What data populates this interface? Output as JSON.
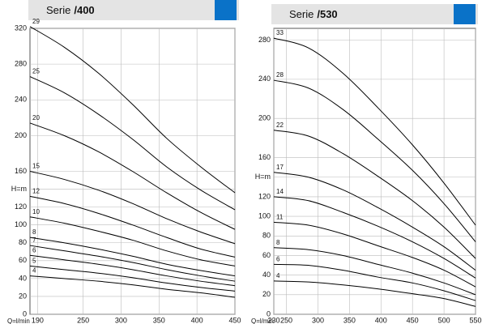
{
  "chart_data": [
    {
      "type": "line",
      "title": "Serie",
      "model": "/400",
      "xlabel": "Q=l/min",
      "grid": true,
      "x": [
        180,
        225,
        270,
        315,
        360,
        405,
        450
      ],
      "xlim": [
        180,
        450
      ],
      "xticks": [
        190,
        250,
        300,
        350,
        400,
        450
      ],
      "ylim": [
        0,
        320
      ],
      "yticks": [
        0,
        20,
        40,
        60,
        80,
        100,
        120,
        {
          "value": 140,
          "label": "H=m"
        },
        160,
        200,
        240,
        280,
        320
      ],
      "series": [
        {
          "name": "29",
          "color": "#000000",
          "values": [
            322,
            299,
            270,
            235,
            197,
            165,
            136
          ]
        },
        {
          "name": "25",
          "color": "#000000",
          "values": [
            266,
            248,
            224,
            196,
            165,
            139,
            117
          ]
        },
        {
          "name": "20",
          "color": "#000000",
          "values": [
            214,
            200,
            182,
            160,
            136,
            114,
            95
          ]
        },
        {
          "name": "15",
          "color": "#000000",
          "values": [
            160,
            151,
            139,
            124,
            107,
            92,
            79
          ]
        },
        {
          "name": "12",
          "color": "#000000",
          "values": [
            132,
            124,
            113,
            100,
            86,
            73,
            64
          ]
        },
        {
          "name": "10",
          "color": "#000000",
          "values": [
            109,
            102,
            93,
            83,
            71,
            61,
            54
          ]
        },
        {
          "name": "8",
          "color": "#000000",
          "values": [
            86,
            80,
            73,
            65,
            56,
            49,
            43
          ]
        },
        {
          "name": "7",
          "color": "#000000",
          "values": [
            77,
            71,
            65,
            58,
            50,
            43,
            37
          ]
        },
        {
          "name": "6",
          "color": "#000000",
          "values": [
            66,
            61,
            56,
            50,
            43,
            37,
            32
          ]
        },
        {
          "name": "5",
          "color": "#000000",
          "values": [
            54,
            50,
            46,
            41,
            35,
            30,
            26
          ]
        },
        {
          "name": "4",
          "color": "#000000",
          "values": [
            43,
            40,
            37,
            33,
            28,
            24,
            19
          ]
        }
      ]
    },
    {
      "type": "line",
      "title": "Serie",
      "model": "/530",
      "xlabel": "Q=l/min",
      "grid": true,
      "x": [
        230,
        285,
        340,
        395,
        450,
        500,
        550
      ],
      "xlim": [
        230,
        550
      ],
      "xticks": [
        230,
        250,
        300,
        350,
        400,
        450,
        500,
        550
      ],
      "ylim": [
        0,
        292
      ],
      "yticks": [
        0,
        20,
        40,
        60,
        80,
        100,
        120,
        {
          "value": 140,
          "label": "H=m"
        },
        160,
        200,
        240,
        280
      ],
      "series": [
        {
          "name": "33",
          "color": "#000000",
          "values": [
            282,
            272,
            246,
            211,
            173,
            134,
            91
          ]
        },
        {
          "name": "28",
          "color": "#000000",
          "values": [
            239,
            231,
            209,
            179,
            147,
            113,
            74
          ]
        },
        {
          "name": "22",
          "color": "#000000",
          "values": [
            188,
            182,
            164,
            141,
            116,
            89,
            57
          ]
        },
        {
          "name": "17",
          "color": "#000000",
          "values": [
            145,
            140,
            127,
            109,
            89,
            69,
            45
          ]
        },
        {
          "name": "14",
          "color": "#000000",
          "values": [
            120,
            116,
            104,
            90,
            74,
            57,
            37
          ]
        },
        {
          "name": "11",
          "color": "#000000",
          "values": [
            94,
            91,
            82,
            70,
            58,
            45,
            28
          ]
        },
        {
          "name": "8",
          "color": "#000000",
          "values": [
            68,
            66,
            60,
            51,
            42,
            32,
            20
          ]
        },
        {
          "name": "6",
          "color": "#000000",
          "values": [
            51,
            50,
            45,
            38,
            32,
            24,
            14
          ]
        },
        {
          "name": "4",
          "color": "#000000",
          "values": [
            34,
            33,
            30,
            26,
            21,
            16,
            8
          ]
        }
      ]
    }
  ]
}
